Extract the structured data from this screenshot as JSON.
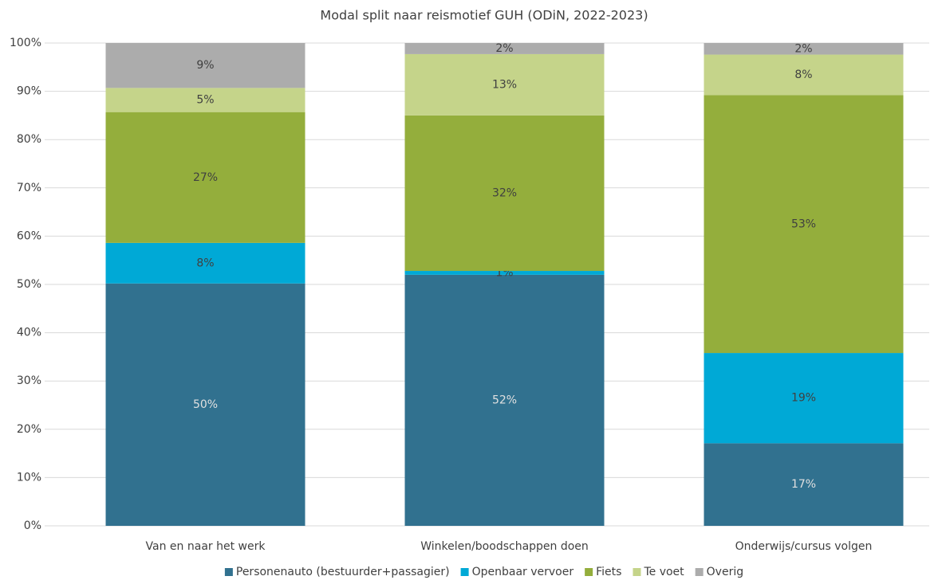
{
  "chart_data": {
    "type": "stacked_bar",
    "title": "Modal split naar reismotief GUH (ODiN, 2022-2023)",
    "categories": [
      "Van en naar het werk",
      "Winkelen/boodschappen doen",
      "Onderwijs/cursus volgen"
    ],
    "series": [
      {
        "name": "Personenauto (bestuurder+passagier)",
        "color": "#31718f",
        "values": [
          50.2,
          52.0,
          17.1
        ],
        "value_labels": [
          "50%",
          "52%",
          "17%"
        ]
      },
      {
        "name": "Openbaar vervoer",
        "color": "#00a9d6",
        "values": [
          8.4,
          0.8,
          18.7
        ],
        "value_labels": [
          "8%",
          "1%",
          "19%"
        ]
      },
      {
        "name": "Fiets",
        "color": "#94ae3c",
        "values": [
          27.1,
          32.2,
          53.4
        ],
        "value_labels": [
          "27%",
          "32%",
          "53%"
        ]
      },
      {
        "name": "Te voet",
        "color": "#c5d48a",
        "values": [
          5.0,
          12.7,
          8.4
        ],
        "value_labels": [
          "5%",
          "13%",
          "8%"
        ]
      },
      {
        "name": "Overig",
        "color": "#acacac",
        "values": [
          9.3,
          2.3,
          2.4
        ],
        "value_labels": [
          "9%",
          "2%",
          "2%"
        ]
      }
    ],
    "ylim": [
      0,
      100
    ],
    "yticks": [
      {
        "value": 0,
        "label": "0%"
      },
      {
        "value": 10,
        "label": "10%"
      },
      {
        "value": 20,
        "label": "20%"
      },
      {
        "value": 30,
        "label": "30%"
      },
      {
        "value": 40,
        "label": "40%"
      },
      {
        "value": 50,
        "label": "50%"
      },
      {
        "value": 60,
        "label": "60%"
      },
      {
        "value": 70,
        "label": "70%"
      },
      {
        "value": 80,
        "label": "80%"
      },
      {
        "value": 90,
        "label": "90%"
      },
      {
        "value": 100,
        "label": "100%"
      }
    ],
    "grid": true,
    "legend": "bottom"
  }
}
